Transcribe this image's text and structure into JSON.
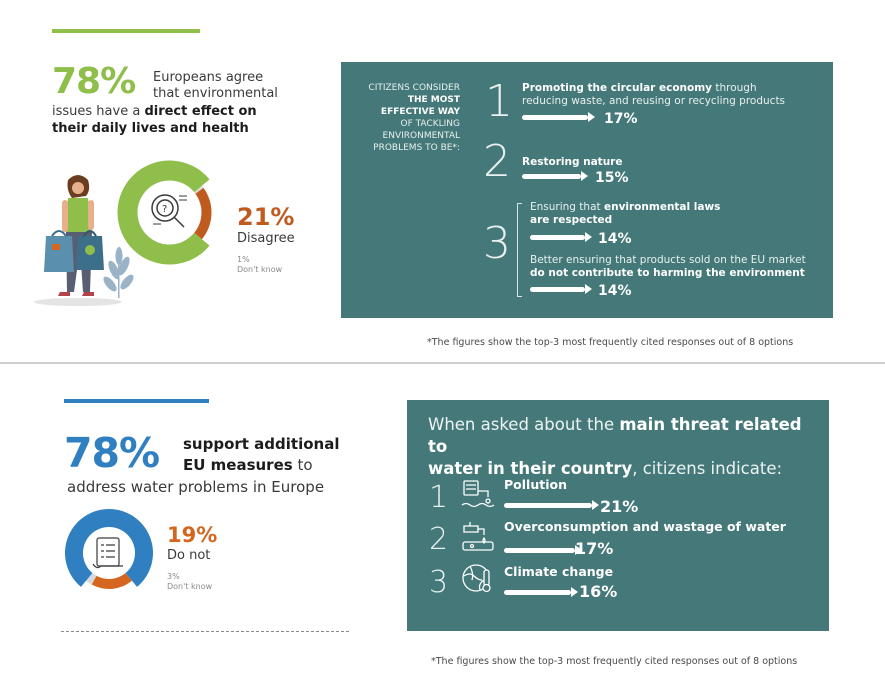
{
  "top": {
    "big_pct": "78%",
    "line1": "Europeans agree",
    "line2": "that environmental",
    "line3_plain": "issues have a ",
    "line3_bold": "direct effect on",
    "line4": "their daily lives and health",
    "disagree_pct": "21%",
    "disagree_label": "Disagree",
    "dontknow_pct": "1%",
    "dontknow_label": "Don't know",
    "donut": {
      "agree": 78,
      "disagree": 21,
      "dont_know": 1
    },
    "colors": {
      "agree": "#8fbe4a",
      "disagree": "#c05b1f",
      "accent_rule": "#8fbe4a"
    }
  },
  "panel1": {
    "head_l1": "CITIZENS CONSIDER",
    "head_l2": "THE MOST",
    "head_l3": "EFFECTIVE WAY",
    "head_l4": "OF TACKLING",
    "head_l5": "ENVIRONMENTAL",
    "head_l6": "PROBLEMS TO BE*:",
    "items": [
      {
        "rank": "1",
        "bold": "Promoting the circular economy",
        "rest1": " through",
        "rest2": "reducing waste, and reusing or recycling products",
        "pct": "17%",
        "value": 17
      },
      {
        "rank": "2",
        "bold": "Restoring nature",
        "pct": "15%",
        "value": 15
      },
      {
        "rank": "3",
        "plain": "Ensuring that ",
        "bold": "environmental laws",
        "bold2": "are respected",
        "pct": "14%",
        "value": 14
      },
      {
        "rank": "",
        "plain": "Better ensuring that products sold on the EU market",
        "bold": "do not contribute to harming the environment",
        "pct": "14%",
        "value": 14
      }
    ],
    "footnote": "*The figures show the top-3 most frequently cited responses out of 8 options"
  },
  "bottom": {
    "big_pct": "78%",
    "l1": "support additional",
    "l2_bold": "EU measures",
    "l2_plain": " to",
    "l3": "address water problems in Europe",
    "donot_pct": "19%",
    "donot_label": "Do not",
    "dontknow_pct": "3%",
    "dontknow_label": "Don't know",
    "donut": {
      "support": 78,
      "do_not": 19,
      "dont_know": 3
    },
    "colors": {
      "support": "#2f7fc1",
      "do_not": "#d4661f",
      "accent_rule": "#2f7fc1"
    }
  },
  "panel2": {
    "title_plain1": "When asked about the ",
    "title_bold1": "main threat related to",
    "title_bold2": "water in their country",
    "title_plain2": ", citizens indicate:",
    "items": [
      {
        "rank": "1",
        "label": "Pollution",
        "pct": "21%",
        "value": 21,
        "icon": "pollution-icon"
      },
      {
        "rank": "2",
        "label": "Overconsumption and wastage of water",
        "pct": "17%",
        "value": 17,
        "icon": "tap-water-icon"
      },
      {
        "rank": "3",
        "label": "Climate change",
        "pct": "16%",
        "value": 16,
        "icon": "globe-thermometer-icon"
      }
    ],
    "footnote": "*The figures show the top-3 most frequently cited responses out of 8 options"
  },
  "colors": {
    "panel": "#457878",
    "divider": "#cfcfcf"
  }
}
